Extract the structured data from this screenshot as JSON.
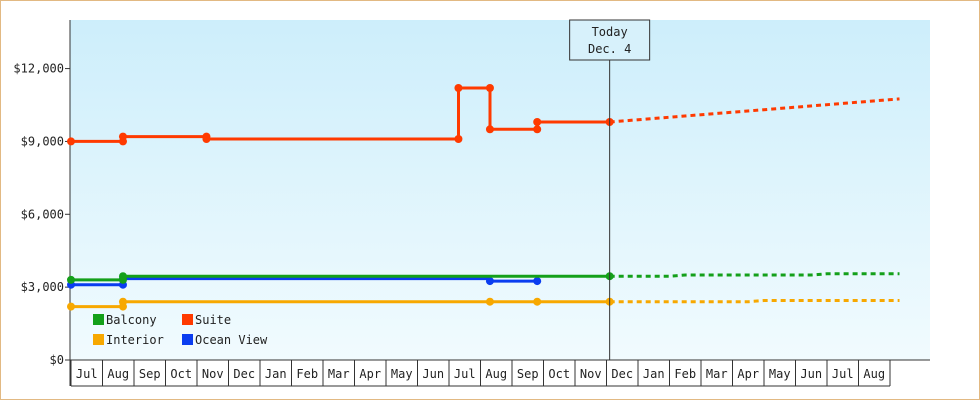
{
  "chart_data": {
    "type": "line",
    "title": "",
    "xlabel": "",
    "ylabel": "",
    "ylim": [
      0,
      14000
    ],
    "yticks": [
      "$0",
      "$3,000",
      "$6,000",
      "$9,000",
      "$12,000"
    ],
    "ytick_values": [
      0,
      3000,
      6000,
      9000,
      12000
    ],
    "month_labels": [
      "Jul",
      "Aug",
      "Sep",
      "Oct",
      "Nov",
      "Dec",
      "Jan",
      "Feb",
      "Mar",
      "Apr",
      "May",
      "Jun",
      "Jul",
      "Aug",
      "Sep",
      "Oct",
      "Nov",
      "Dec",
      "Jan",
      "Feb",
      "Mar",
      "Apr",
      "May",
      "Jun",
      "Jul",
      "Aug"
    ],
    "x_start_month_index": 0,
    "today": {
      "line1": "Today",
      "line2": "Dec. 4",
      "x": 17.1
    },
    "grid": false,
    "legend_position": "bottom-left",
    "background": {
      "top": "#cdeefb",
      "bottom": "#f1fbfe"
    },
    "series": [
      {
        "name": "Suite",
        "color": "#ff3a00",
        "points": [
          [
            0,
            9000
          ],
          [
            1.65,
            9000
          ],
          [
            1.65,
            9200
          ],
          [
            4.3,
            9200
          ],
          [
            4.3,
            9100
          ],
          [
            12.3,
            9100
          ],
          [
            12.3,
            11200
          ],
          [
            13.3,
            11200
          ],
          [
            13.3,
            9500
          ],
          [
            14.8,
            9500
          ],
          [
            14.8,
            9800
          ],
          [
            17.1,
            9800
          ]
        ],
        "markers": [
          [
            0,
            9000
          ],
          [
            1.65,
            9000
          ],
          [
            1.65,
            9200
          ],
          [
            4.3,
            9200
          ],
          [
            4.3,
            9100
          ],
          [
            12.3,
            9100
          ],
          [
            12.3,
            11200
          ],
          [
            13.3,
            11200
          ],
          [
            13.3,
            9500
          ],
          [
            14.8,
            9500
          ],
          [
            14.8,
            9800
          ],
          [
            17.1,
            9800
          ]
        ],
        "forecast": [
          [
            17.1,
            9800
          ],
          [
            26.3,
            10750
          ]
        ]
      },
      {
        "name": "Balcony",
        "color": "#14a01a",
        "points": [
          [
            0,
            3300
          ],
          [
            1.65,
            3300
          ],
          [
            1.65,
            3450
          ],
          [
            17.1,
            3450
          ]
        ],
        "markers": [
          [
            0,
            3300
          ],
          [
            1.65,
            3300
          ],
          [
            1.65,
            3450
          ],
          [
            17.1,
            3450
          ]
        ],
        "forecast": [
          [
            17.1,
            3450
          ],
          [
            19,
            3450
          ],
          [
            19.5,
            3500
          ],
          [
            23.5,
            3500
          ],
          [
            24,
            3550
          ],
          [
            26.3,
            3550
          ]
        ]
      },
      {
        "name": "Ocean View",
        "color": "#0a3df0",
        "points": [
          [
            0,
            3100
          ],
          [
            1.65,
            3100
          ],
          [
            1.65,
            3350
          ],
          [
            13.3,
            3350
          ],
          [
            13.3,
            3250
          ],
          [
            14.8,
            3250
          ]
        ],
        "markers": [
          [
            0,
            3100
          ],
          [
            1.65,
            3100
          ],
          [
            1.65,
            3350
          ],
          [
            13.3,
            3250
          ],
          [
            14.8,
            3250
          ]
        ],
        "forecast": []
      },
      {
        "name": "Interior",
        "color": "#f7a800",
        "points": [
          [
            0,
            2200
          ],
          [
            1.65,
            2200
          ],
          [
            1.65,
            2400
          ],
          [
            17.1,
            2400
          ]
        ],
        "markers": [
          [
            0,
            2200
          ],
          [
            1.65,
            2200
          ],
          [
            1.65,
            2400
          ],
          [
            13.3,
            2400
          ],
          [
            14.8,
            2400
          ],
          [
            17.1,
            2400
          ]
        ],
        "forecast": [
          [
            17.1,
            2400
          ],
          [
            21.5,
            2400
          ],
          [
            22,
            2450
          ],
          [
            26.3,
            2450
          ]
        ]
      }
    ],
    "legend": [
      {
        "name": "Balcony",
        "color": "#14a01a"
      },
      {
        "name": "Suite",
        "color": "#ff3a00"
      },
      {
        "name": "Interior",
        "color": "#f7a800"
      },
      {
        "name": "Ocean View",
        "color": "#0a3df0"
      }
    ]
  }
}
